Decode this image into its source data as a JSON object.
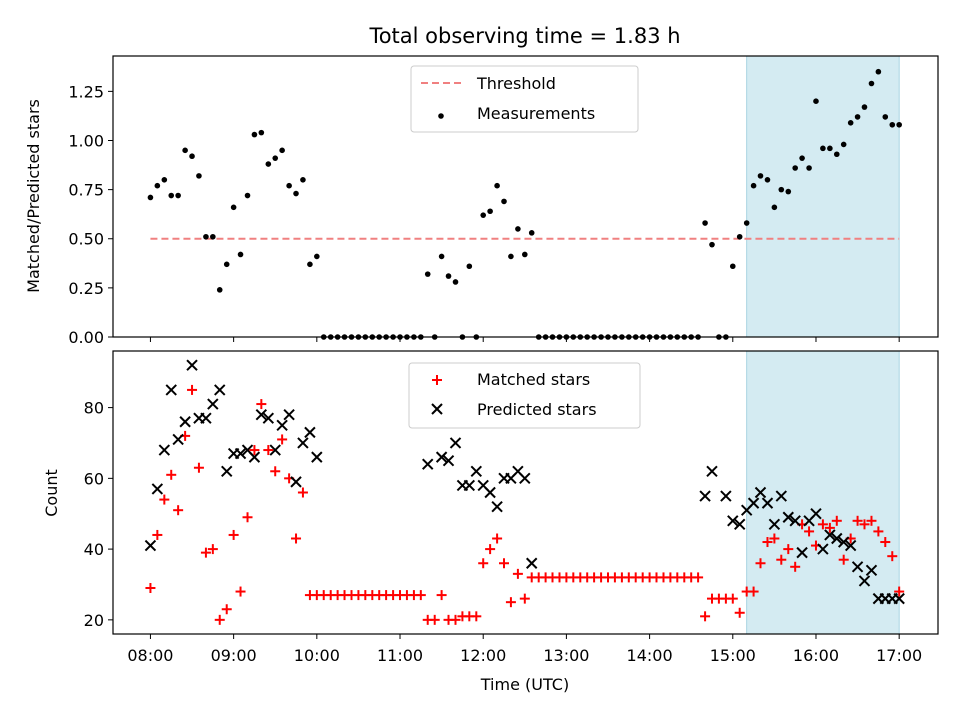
{
  "chart_data": {
    "type": "scatter",
    "title": "Total observing time = 1.83 h",
    "xlabel": "Time (UTC)",
    "x_unit": "hours UTC",
    "xlim": [
      "07:33",
      "17:28"
    ],
    "xticks": [
      "08:00",
      "09:00",
      "10:00",
      "11:00",
      "12:00",
      "13:00",
      "14:00",
      "15:00",
      "16:00",
      "17:00"
    ],
    "highlight_span": {
      "start": "15:10",
      "end": "17:00",
      "color": "#d4ebf2"
    },
    "top_panel": {
      "ylabel": "Matched/Predicted stars",
      "ylim": [
        0,
        1.43
      ],
      "yticks": [
        "0.00",
        "0.25",
        "0.50",
        "0.75",
        "1.00",
        "1.25"
      ],
      "threshold": {
        "name": "Threshold",
        "value": 0.5,
        "color": "#f08080"
      },
      "series": [
        {
          "name": "Measurements",
          "color": "#000000",
          "x": [
            8.0,
            8.083,
            8.167,
            8.25,
            8.333,
            8.417,
            8.5,
            8.583,
            8.667,
            8.75,
            8.833,
            8.917,
            9.0,
            9.083,
            9.167,
            9.25,
            9.333,
            9.417,
            9.5,
            9.583,
            9.667,
            9.75,
            9.833,
            9.917,
            10.0,
            10.083,
            10.167,
            10.25,
            10.333,
            10.417,
            10.5,
            10.583,
            10.667,
            10.75,
            10.833,
            10.917,
            11.0,
            11.083,
            11.167,
            11.25,
            11.333,
            11.417,
            11.5,
            11.583,
            11.667,
            11.75,
            11.833,
            11.917,
            12.0,
            12.083,
            12.167,
            12.25,
            12.333,
            12.417,
            12.5,
            12.583,
            12.667,
            12.75,
            12.833,
            12.917,
            13.0,
            13.083,
            13.167,
            13.25,
            13.333,
            13.417,
            13.5,
            13.583,
            13.667,
            13.75,
            13.833,
            13.917,
            14.0,
            14.083,
            14.167,
            14.25,
            14.333,
            14.417,
            14.5,
            14.583,
            14.667,
            14.75,
            14.833,
            14.917,
            15.0,
            15.083,
            15.167,
            15.25,
            15.333,
            15.417,
            15.5,
            15.583,
            15.667,
            15.75,
            15.833,
            15.917,
            16.0,
            16.083,
            16.167,
            16.25,
            16.333,
            16.417,
            16.5,
            16.583,
            16.667,
            16.75,
            16.833,
            16.917,
            17.0
          ],
          "y": [
            0.71,
            0.77,
            0.8,
            0.72,
            0.72,
            0.95,
            0.92,
            0.82,
            0.51,
            0.51,
            0.24,
            0.37,
            0.66,
            0.42,
            0.72,
            1.03,
            1.04,
            0.88,
            0.91,
            0.95,
            0.77,
            0.73,
            0.8,
            0.37,
            0.41,
            0.0,
            0.0,
            0.0,
            0.0,
            0.0,
            0.0,
            0.0,
            0.0,
            0.0,
            0.0,
            0.0,
            0.0,
            0.0,
            0.0,
            0.0,
            0.32,
            0.0,
            0.41,
            0.31,
            0.28,
            0.0,
            0.36,
            0.0,
            0.62,
            0.64,
            0.77,
            0.69,
            0.41,
            0.55,
            0.42,
            0.53,
            0.0,
            0.0,
            0.0,
            0.0,
            0.0,
            0.0,
            0.0,
            0.0,
            0.0,
            0.0,
            0.0,
            0.0,
            0.0,
            0.0,
            0.0,
            0.0,
            0.0,
            0.0,
            0.0,
            0.0,
            0.0,
            0.0,
            0.0,
            0.0,
            0.58,
            0.47,
            0.0,
            0.0,
            0.36,
            0.51,
            0.58,
            0.77,
            0.82,
            0.8,
            0.66,
            0.75,
            0.74,
            0.86,
            0.91,
            0.86,
            1.2,
            0.96,
            0.96,
            0.93,
            0.98,
            1.09,
            1.12,
            1.17,
            1.29,
            1.35,
            1.12,
            1.08,
            1.08
          ]
        }
      ]
    },
    "bottom_panel": {
      "ylabel": "Count",
      "ylim": [
        16,
        96
      ],
      "yticks": [
        "20",
        "40",
        "60",
        "80"
      ],
      "series": [
        {
          "name": "Matched stars",
          "marker": "+",
          "color": "#ff0000",
          "x": [
            8.0,
            8.083,
            8.167,
            8.25,
            8.333,
            8.417,
            8.5,
            8.583,
            8.667,
            8.75,
            8.833,
            8.917,
            9.0,
            9.083,
            9.167,
            9.25,
            9.333,
            9.417,
            9.5,
            9.583,
            9.667,
            9.75,
            9.833,
            9.917,
            10.0,
            10.083,
            10.167,
            10.25,
            10.333,
            10.417,
            10.5,
            10.583,
            10.667,
            10.75,
            10.833,
            10.917,
            11.0,
            11.083,
            11.167,
            11.25,
            11.333,
            11.417,
            11.5,
            11.583,
            11.667,
            11.75,
            11.833,
            11.917,
            12.0,
            12.083,
            12.167,
            12.25,
            12.333,
            12.417,
            12.5,
            12.583,
            12.667,
            12.75,
            12.833,
            12.917,
            13.0,
            13.083,
            13.167,
            13.25,
            13.333,
            13.417,
            13.5,
            13.583,
            13.667,
            13.75,
            13.833,
            13.917,
            14.0,
            14.083,
            14.167,
            14.25,
            14.333,
            14.417,
            14.5,
            14.583,
            14.667,
            14.75,
            14.833,
            14.917,
            15.0,
            15.083,
            15.167,
            15.25,
            15.333,
            15.417,
            15.5,
            15.583,
            15.667,
            15.75,
            15.833,
            15.917,
            16.0,
            16.083,
            16.167,
            16.25,
            16.333,
            16.417,
            16.5,
            16.583,
            16.667,
            16.75,
            16.833,
            16.917,
            17.0
          ],
          "y": [
            29,
            44,
            54,
            61,
            51,
            72,
            85,
            63,
            39,
            40,
            20,
            23,
            44,
            28,
            49,
            68,
            81,
            68,
            62,
            71,
            60,
            43,
            56,
            27,
            27,
            27,
            27,
            27,
            27,
            27,
            27,
            27,
            27,
            27,
            27,
            27,
            27,
            27,
            27,
            27,
            20,
            20,
            27,
            20,
            20,
            21,
            21,
            21,
            36,
            40,
            43,
            36,
            25,
            33,
            26,
            32,
            32,
            32,
            32,
            32,
            32,
            32,
            32,
            32,
            32,
            32,
            32,
            32,
            32,
            32,
            32,
            32,
            32,
            32,
            32,
            32,
            32,
            32,
            32,
            32,
            21,
            26,
            26,
            26,
            26,
            22,
            28,
            28,
            36,
            42,
            43,
            37,
            40,
            35,
            47,
            45,
            41,
            47,
            46,
            48,
            37,
            43,
            48,
            47,
            48,
            45,
            42,
            38,
            28
          ]
        },
        {
          "name": "Predicted stars",
          "marker": "x",
          "color": "#000000",
          "x": [
            8.0,
            8.083,
            8.167,
            8.25,
            8.333,
            8.417,
            8.5,
            8.583,
            8.667,
            8.75,
            8.833,
            8.917,
            9.0,
            9.083,
            9.167,
            9.25,
            9.333,
            9.417,
            9.5,
            9.583,
            9.667,
            9.75,
            9.833,
            9.917,
            10.0,
            11.333,
            11.5,
            11.583,
            11.667,
            11.75,
            11.833,
            11.917,
            12.0,
            12.083,
            12.167,
            12.25,
            12.333,
            12.417,
            12.5,
            12.583,
            14.667,
            14.75,
            14.917,
            15.0,
            15.083,
            15.167,
            15.25,
            15.333,
            15.417,
            15.5,
            15.583,
            15.667,
            15.75,
            15.833,
            15.917,
            16.0,
            16.083,
            16.167,
            16.25,
            16.333,
            16.417,
            16.5,
            16.583,
            16.667,
            16.75,
            16.833,
            16.917,
            17.0
          ],
          "y": [
            41,
            57,
            68,
            85,
            71,
            76,
            92,
            77,
            77,
            81,
            85,
            62,
            67,
            67,
            68,
            66,
            78,
            77,
            68,
            75,
            78,
            59,
            70,
            73,
            66,
            64,
            66,
            65,
            70,
            58,
            58,
            62,
            58,
            56,
            52,
            60,
            60,
            62,
            60,
            36,
            55,
            62,
            55,
            48,
            47,
            51,
            53,
            56,
            53,
            47,
            55,
            49,
            48,
            39,
            48,
            50,
            40,
            44,
            43,
            42,
            41,
            35,
            31,
            34,
            26,
            26,
            26,
            26
          ]
        }
      ]
    }
  }
}
